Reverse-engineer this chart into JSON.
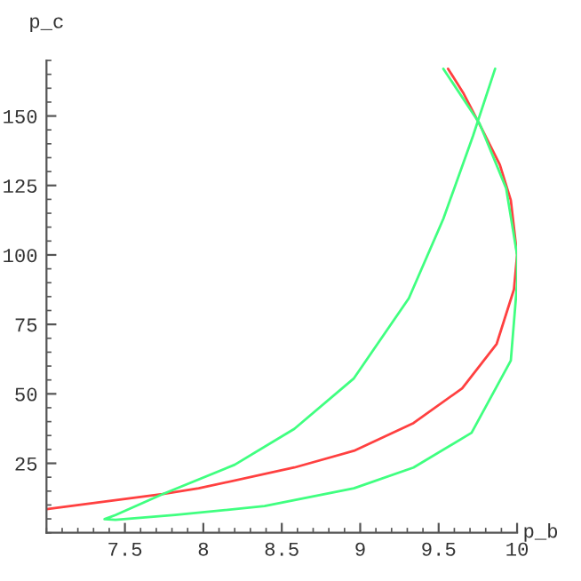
{
  "chart_data": {
    "type": "line",
    "xlabel": "p_b",
    "ylabel": "p_c",
    "xlim": [
      7,
      10
    ],
    "ylim": [
      0,
      170
    ],
    "xticks": [
      7.5,
      8,
      8.5,
      9,
      9.5,
      10
    ],
    "yticks": [
      25,
      50,
      75,
      100,
      125,
      150
    ],
    "grid": false,
    "marker": "none",
    "line_style": "solid",
    "series": [
      {
        "color": "#ff4040",
        "x": [
          7.0,
          7.74,
          7.97,
          8.58,
          8.96,
          9.34,
          9.65,
          9.87,
          9.98,
          10.0,
          9.96,
          9.89,
          9.77,
          9.66,
          9.56
        ],
        "values": [
          8.5,
          13.9,
          16,
          23.5,
          29.5,
          39.5,
          52,
          68,
          87.6,
          100,
          119.7,
          132.5,
          146,
          158,
          167
        ]
      },
      {
        "color": "#40ff80",
        "x": [
          9.53,
          9.76,
          9.93,
          10.0,
          10.0,
          9.96,
          9.71,
          9.34,
          8.96,
          8.39,
          7.82,
          7.44,
          7.37,
          7.44,
          7.74,
          8.2,
          8.58,
          8.96,
          9.31,
          9.53,
          9.72,
          9.86
        ],
        "values": [
          167,
          147.4,
          124,
          100,
          89.7,
          62,
          36,
          23.5,
          16,
          9.6,
          6.4,
          4.7,
          4.9,
          6.4,
          13.9,
          24.5,
          37.4,
          55.6,
          84.4,
          113,
          143,
          167
        ]
      }
    ]
  }
}
